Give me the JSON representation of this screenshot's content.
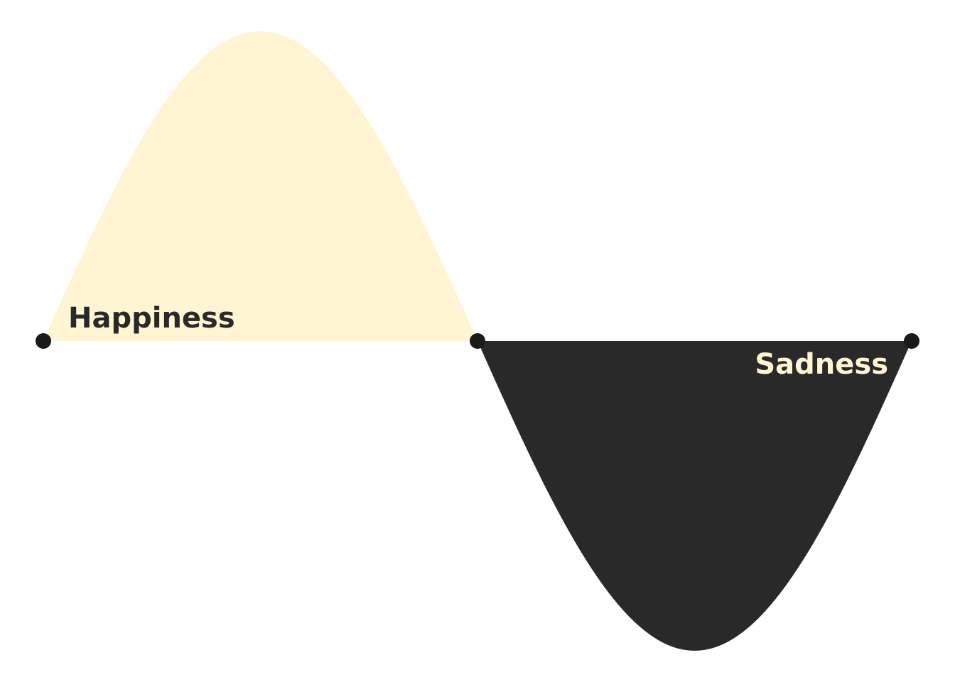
{
  "diagram": {
    "positive_label": "Happiness",
    "negative_label": "Sadness"
  },
  "colors": {
    "positive_fill": "#FFF5D3",
    "negative_fill": "#292929",
    "point_fill": "#1A1A1A",
    "positive_label_color": "#292929",
    "negative_label_color": "#FFF5D3",
    "background": "#FFFFFF"
  }
}
